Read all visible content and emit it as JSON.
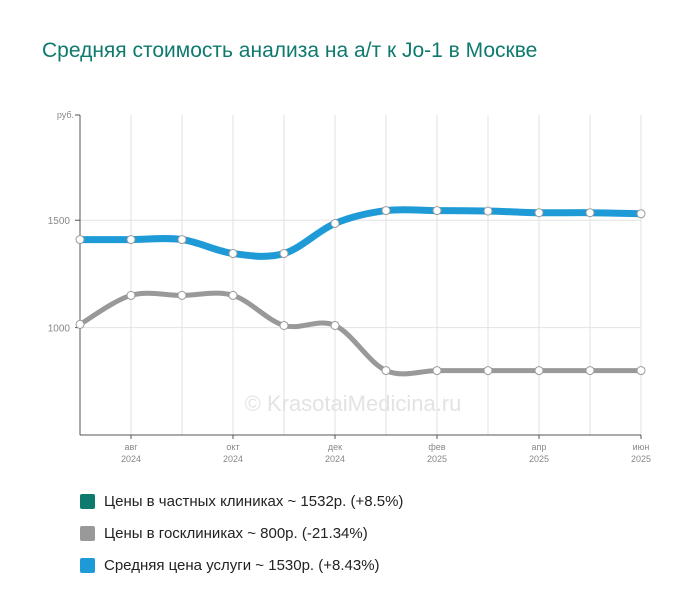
{
  "title": "Средняя стоимость анализа на а/т к Jo-1 в Москве",
  "watermark": "© KrasotaiMedicina.ru",
  "legend": [
    {
      "label": "Цены в частных клиниках ~ 1532р. (+8.5%)",
      "color": "#0e7a6e"
    },
    {
      "label": "Цены в госклиниках ~ 800р. (-21.34%)",
      "color": "#999999"
    },
    {
      "label": "Средняя цена услуги ~ 1530р. (+8.43%)",
      "color": "#1e9bd7"
    }
  ],
  "chart_data": {
    "type": "line",
    "x": [
      "2024-07",
      "2024-08",
      "2024-09",
      "2024-10",
      "2024-11",
      "2024-12",
      "2025-01",
      "2025-02",
      "2025-03",
      "2025-04",
      "2025-05",
      "2025-06"
    ],
    "y_unit_label": "руб.",
    "y_ticks": [
      1000,
      1500
    ],
    "ylim": [
      500,
      1990
    ],
    "x_tick_labels": [
      {
        "x": "2024-08",
        "month": "авг",
        "year": "2024"
      },
      {
        "x": "2024-10",
        "month": "окт",
        "year": "2024"
      },
      {
        "x": "2024-12",
        "month": "дек",
        "year": "2024"
      },
      {
        "x": "2025-02",
        "month": "фев",
        "year": "2025"
      },
      {
        "x": "2025-04",
        "month": "апр",
        "year": "2025"
      },
      {
        "x": "2025-06",
        "month": "июн",
        "year": "2025"
      }
    ],
    "grid": true,
    "series": [
      {
        "name": "Средняя цена услуги",
        "color": "#1e9bd7",
        "values": [
          1410,
          1410,
          1410,
          1345,
          1345,
          1485,
          1545,
          1545,
          1543,
          1535,
          1535,
          1530
        ]
      },
      {
        "name": "Цены в госклиниках",
        "color": "#999999",
        "values": [
          1015,
          1150,
          1150,
          1150,
          1010,
          1010,
          800,
          800,
          800,
          800,
          800,
          800
        ]
      }
    ]
  }
}
